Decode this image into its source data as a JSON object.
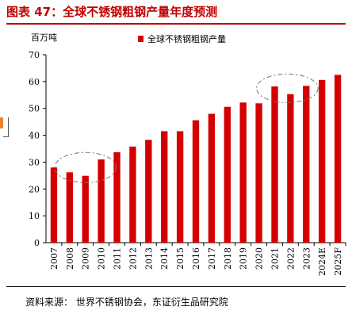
{
  "header": {
    "title": "图表 47：全球不锈钢粗钢产量年度预测"
  },
  "footer": {
    "source": "资料来源： 世界不锈钢协会，东证衍生品研究院"
  },
  "colors": {
    "accent": "#c00000",
    "bar": "#d40000",
    "annotation": "#777777"
  },
  "chart_data": {
    "type": "bar",
    "unit_label": "百万吨",
    "legend": "全球不锈钢粗钢产量",
    "legend_position": "top",
    "categories": [
      "2007",
      "2008",
      "2009",
      "2010",
      "2011",
      "2012",
      "2013",
      "2014",
      "2015",
      "2016",
      "2017",
      "2018",
      "2019",
      "2020",
      "2021",
      "2022",
      "2023",
      "2024E",
      "2025F"
    ],
    "series": [
      {
        "name": "全球不锈钢粗钢产量",
        "values": [
          28.0,
          26.2,
          24.9,
          31.0,
          33.7,
          35.8,
          38.3,
          41.5,
          41.5,
          45.6,
          48.0,
          50.6,
          52.2,
          51.9,
          58.2,
          55.3,
          58.4,
          60.6,
          62.5
        ]
      }
    ],
    "yticks": [
      0,
      10,
      20,
      30,
      40,
      50,
      60,
      70
    ],
    "ylim": [
      0,
      70
    ],
    "grid": false,
    "annotations": [
      "2008–2010 dip (dashed ellipse)",
      "2021–2023 plateau (dashed ellipse)"
    ]
  }
}
